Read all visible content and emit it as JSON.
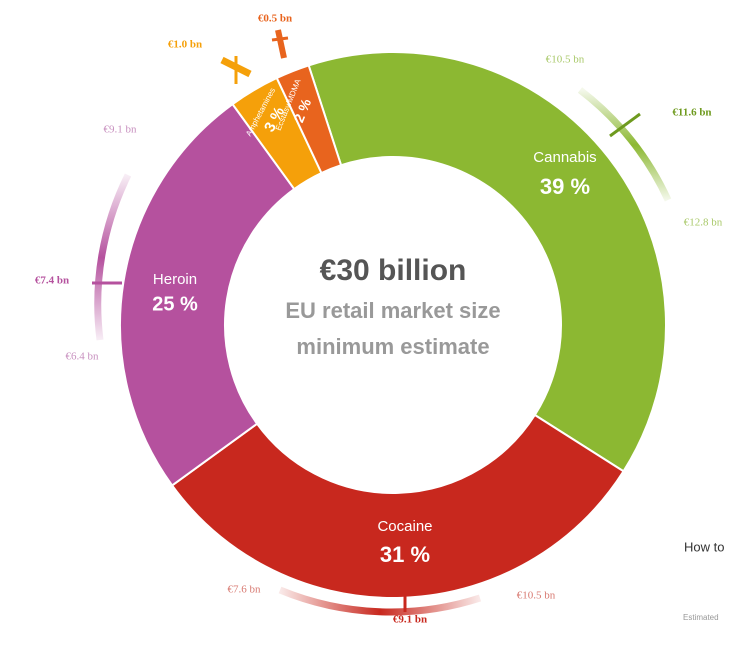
{
  "chart_data": {
    "type": "pie",
    "donut": true,
    "categories": [
      "Cannabis",
      "Cocaine",
      "Heroin",
      "Amphetamines",
      "Ecstasy/MDMA"
    ],
    "values": [
      39,
      31,
      25,
      3,
      2
    ],
    "value_labels": [
      "39 %",
      "31 %",
      "25 %",
      "3 %",
      "2 %"
    ],
    "colors": [
      "#8cb832",
      "#c8281e",
      "#b5519e",
      "#f5a00a",
      "#e8641e"
    ],
    "center_text": [
      "€30 billion",
      "EU retail market size",
      "minimum estimate"
    ],
    "annotations": [
      "€10.5 bn",
      "€11.6 bn",
      "€12.8 bn",
      "€7.6 bn",
      "€9.1 bn",
      "€10.5 bn",
      "€9.1 bn",
      "€7.4 bn",
      "€6.4 bn",
      "€1.0 bn",
      "€0.5 bn"
    ],
    "side_text": [
      "How to",
      "Estimated"
    ]
  }
}
